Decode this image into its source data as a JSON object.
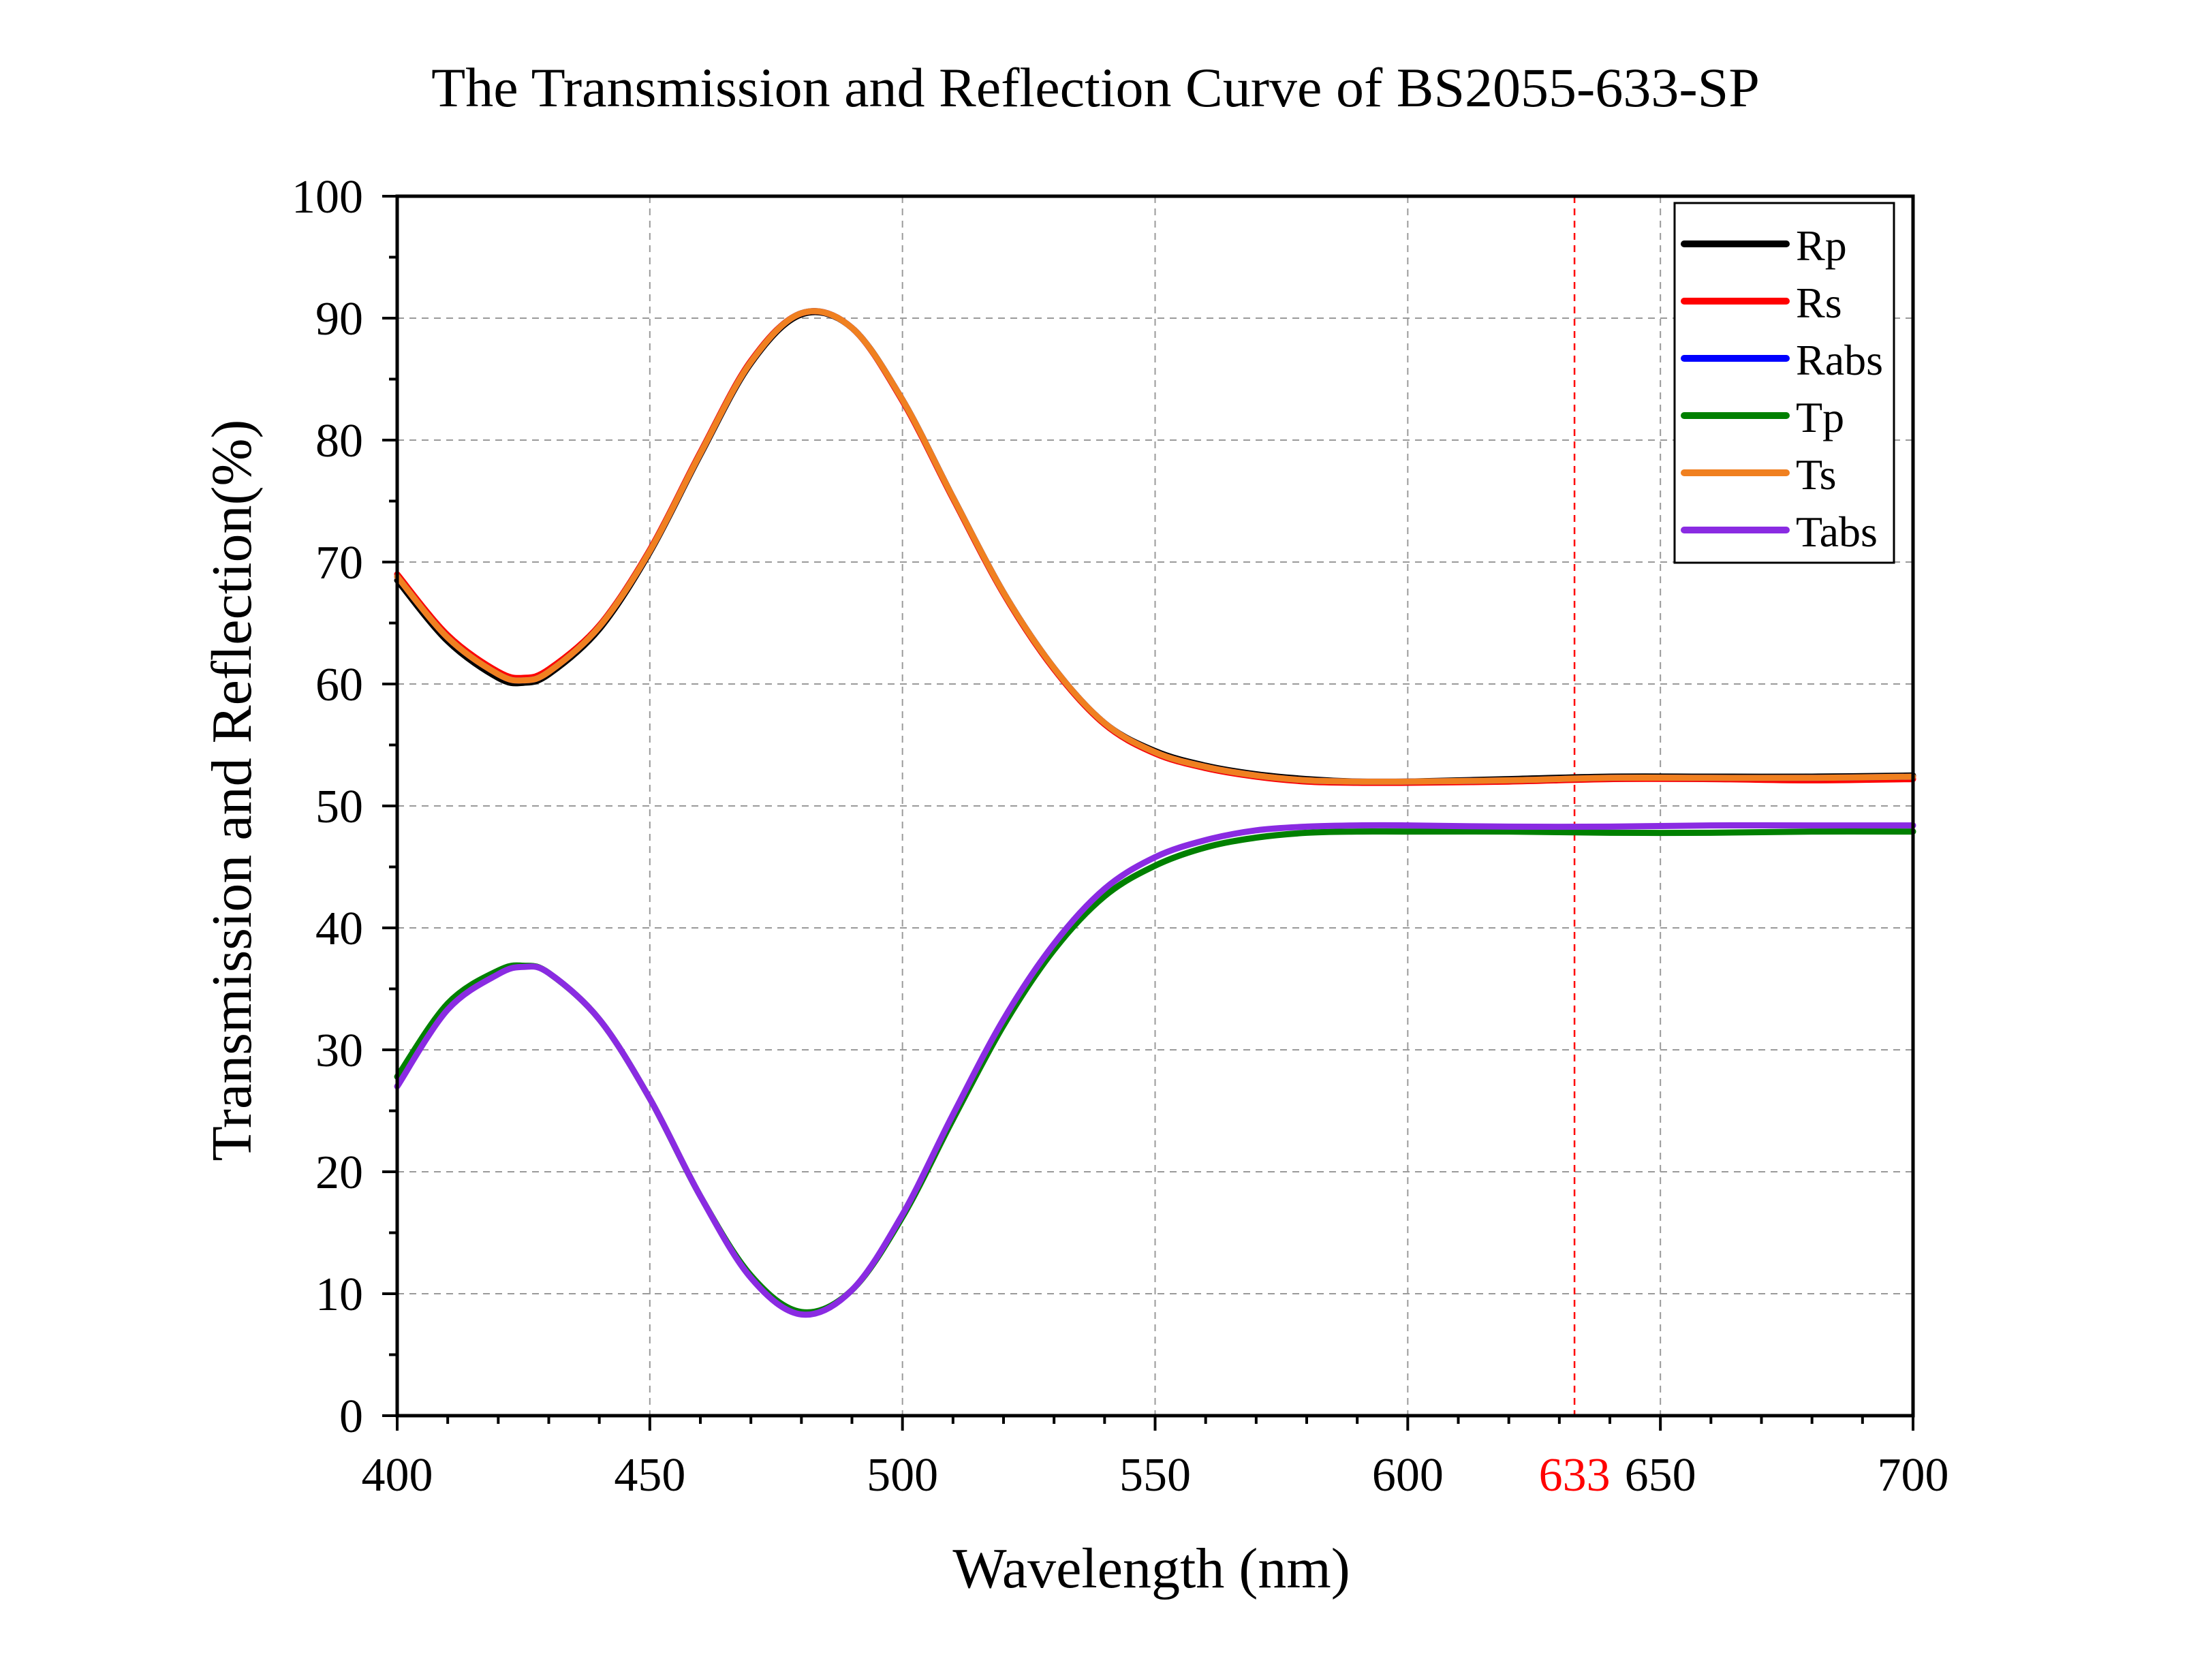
{
  "chart_data": {
    "type": "line",
    "title": "The Transmission and Reflection Curve of BS2055-633-SP",
    "xlabel": "Wavelength (nm)",
    "ylabel": "Transmission and Reflection(%)",
    "xlim": [
      400,
      700
    ],
    "ylim": [
      0,
      100
    ],
    "x_ticks": [
      400,
      450,
      500,
      550,
      600,
      650,
      700
    ],
    "y_ticks": [
      0,
      10,
      20,
      30,
      40,
      50,
      60,
      70,
      80,
      90,
      100
    ],
    "grid": true,
    "legend_position": "top-right",
    "marker_line": {
      "x": 633,
      "label": "633",
      "color": "#ff0000"
    },
    "x": [
      400,
      410,
      420,
      425,
      430,
      440,
      450,
      460,
      470,
      480,
      490,
      500,
      510,
      520,
      530,
      540,
      550,
      560,
      570,
      580,
      590,
      600,
      620,
      640,
      660,
      680,
      700
    ],
    "series": [
      {
        "name": "Rp",
        "color": "#000000",
        "values": [
          68.5,
          63.5,
          60.5,
          60.1,
          60.8,
          64.5,
          70.8,
          78.8,
          86.3,
          90.3,
          89.2,
          83.3,
          75.3,
          67.5,
          61.3,
          56.8,
          54.5,
          53.3,
          52.6,
          52.2,
          52.0,
          52.0,
          52.2,
          52.4,
          52.4,
          52.4,
          52.5
        ]
      },
      {
        "name": "Rs",
        "color": "#ff0000",
        "values": [
          69.0,
          64.0,
          61.0,
          60.5,
          61.2,
          64.8,
          71.0,
          79.0,
          86.5,
          90.4,
          89.2,
          83.2,
          75.2,
          67.4,
          61.2,
          56.7,
          54.3,
          53.1,
          52.4,
          52.0,
          51.9,
          51.9,
          52.0,
          52.2,
          52.2,
          52.1,
          52.2
        ]
      },
      {
        "name": "Rabs",
        "color": "#0000ff",
        "values": [
          68.8,
          63.8,
          60.8,
          60.3,
          61.0,
          64.7,
          70.9,
          78.9,
          86.4,
          90.4,
          89.2,
          83.3,
          75.3,
          67.5,
          61.3,
          56.8,
          54.4,
          53.2,
          52.5,
          52.1,
          52.0,
          52.0,
          52.1,
          52.3,
          52.3,
          52.3,
          52.4
        ]
      },
      {
        "name": "Tp",
        "color": "#008000",
        "values": [
          27.8,
          33.8,
          36.5,
          36.9,
          36.3,
          32.5,
          26.0,
          18.0,
          11.5,
          8.5,
          10.3,
          16.3,
          24.3,
          32.0,
          38.2,
          42.6,
          45.1,
          46.6,
          47.4,
          47.8,
          47.9,
          47.9,
          47.9,
          47.8,
          47.8,
          47.9,
          47.9
        ]
      },
      {
        "name": "Ts",
        "color": "#f08020",
        "values": [
          68.8,
          63.8,
          60.8,
          60.3,
          61.0,
          64.7,
          70.9,
          78.9,
          86.4,
          90.4,
          89.2,
          83.3,
          75.3,
          67.5,
          61.3,
          56.8,
          54.4,
          53.2,
          52.5,
          52.1,
          52.0,
          52.0,
          52.1,
          52.3,
          52.3,
          52.3,
          52.4
        ]
      },
      {
        "name": "Tabs",
        "color": "#8a2be2",
        "values": [
          27.0,
          33.3,
          36.2,
          36.8,
          36.3,
          32.5,
          26.0,
          18.0,
          11.3,
          8.3,
          10.3,
          16.5,
          24.7,
          32.5,
          38.7,
          43.2,
          45.8,
          47.2,
          48.0,
          48.3,
          48.4,
          48.4,
          48.3,
          48.3,
          48.4,
          48.4,
          48.4
        ]
      }
    ]
  }
}
